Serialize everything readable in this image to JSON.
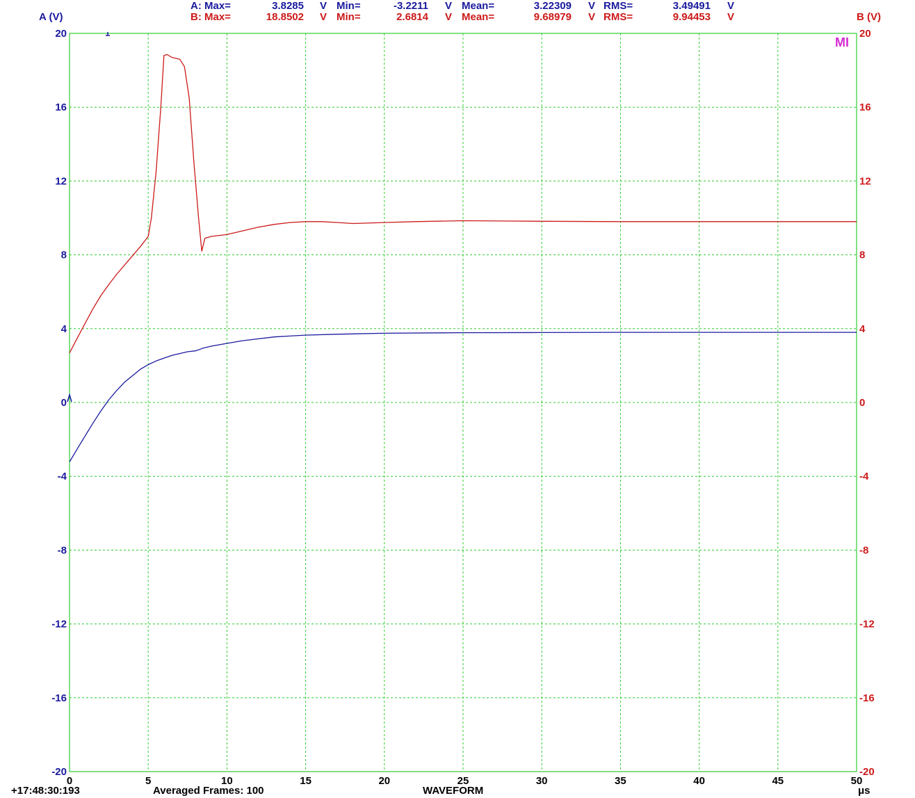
{
  "colors": {
    "channel_a": "#1a1a9e",
    "channel_b": "#cc1a1a",
    "grid": "#2ecc2e",
    "marker": "#d42ad4",
    "frame": "#2ecc2e"
  },
  "header": {
    "row_a": {
      "label": "A: Max=",
      "max": "3.8285",
      "max_unit": "V",
      "min_label": "Min=",
      "min": "-3.2211",
      "min_unit": "V",
      "mean_label": "Mean=",
      "mean": "3.22309",
      "mean_unit": "V",
      "rms_label": "RMS=",
      "rms": "3.49491",
      "rms_unit": "V"
    },
    "row_b": {
      "label": "B: Max=",
      "max": "18.8502",
      "max_unit": "V",
      "min_label": "Min=",
      "min": "2.6814",
      "min_unit": "V",
      "mean_label": "Mean=",
      "mean": "9.68979",
      "mean_unit": "V",
      "rms_label": "RMS=",
      "rms": "9.94453",
      "rms_unit": "V"
    }
  },
  "marker_label": "MI",
  "footer": {
    "timestamp": "+17:48:30:193",
    "averaged": "Averaged Frames: 100",
    "mode": "WAVEFORM"
  },
  "chart_data": {
    "type": "line",
    "xlabel": "μs",
    "ylabel_left": "A (V)",
    "ylabel_right": "B (V)",
    "xlim": [
      0,
      50
    ],
    "ylim_left": [
      -20,
      20
    ],
    "ylim_right": [
      -20,
      20
    ],
    "x_ticks": [
      "0",
      "5",
      "10",
      "15",
      "20",
      "25",
      "30",
      "35",
      "40",
      "45",
      "50"
    ],
    "y_ticks_left": [
      "20",
      "16",
      "12",
      "8",
      "4",
      "0",
      "-4",
      "-8",
      "-12",
      "-16",
      "-20"
    ],
    "y_ticks_right": [
      "20",
      "16",
      "12",
      "8",
      "4",
      "0",
      "-4",
      "-8",
      "-12",
      "-16",
      "-20"
    ],
    "grid": true,
    "series": [
      {
        "name": "A",
        "axis": "left",
        "x": [
          0,
          0.5,
          1,
          1.5,
          2,
          2.5,
          3,
          3.5,
          4,
          4.5,
          5,
          5.5,
          6,
          6.5,
          7,
          7.5,
          8,
          8.2,
          8.5,
          9,
          10,
          11,
          12,
          13,
          14,
          15,
          17,
          20,
          25,
          30,
          35,
          40,
          45,
          50
        ],
        "y": [
          -3.22,
          -2.5,
          -1.8,
          -1.1,
          -0.45,
          0.15,
          0.65,
          1.1,
          1.45,
          1.8,
          2.05,
          2.25,
          2.4,
          2.55,
          2.65,
          2.75,
          2.8,
          2.85,
          2.95,
          3.05,
          3.2,
          3.35,
          3.45,
          3.55,
          3.6,
          3.65,
          3.7,
          3.75,
          3.78,
          3.79,
          3.8,
          3.8,
          3.8,
          3.8
        ]
      },
      {
        "name": "B",
        "axis": "right",
        "x": [
          0,
          0.5,
          1,
          1.5,
          2,
          2.5,
          3,
          3.5,
          4,
          4.5,
          5,
          5.2,
          5.5,
          5.8,
          6.0,
          6.2,
          6.5,
          7.0,
          7.3,
          7.6,
          7.9,
          8.2,
          8.4,
          8.6,
          9.0,
          10,
          11,
          12,
          13,
          14,
          15,
          16,
          17,
          18,
          19,
          20,
          22,
          25,
          28,
          30,
          35,
          40,
          45,
          50
        ],
        "y": [
          2.68,
          3.5,
          4.3,
          5.1,
          5.8,
          6.4,
          6.95,
          7.45,
          7.95,
          8.45,
          9.0,
          10.0,
          12.5,
          16.0,
          18.8,
          18.85,
          18.7,
          18.6,
          18.2,
          16.5,
          13.0,
          10.0,
          8.2,
          8.9,
          9.0,
          9.1,
          9.3,
          9.5,
          9.65,
          9.75,
          9.8,
          9.8,
          9.75,
          9.7,
          9.72,
          9.75,
          9.8,
          9.85,
          9.83,
          9.82,
          9.8,
          9.8,
          9.8,
          9.8
        ]
      }
    ]
  }
}
